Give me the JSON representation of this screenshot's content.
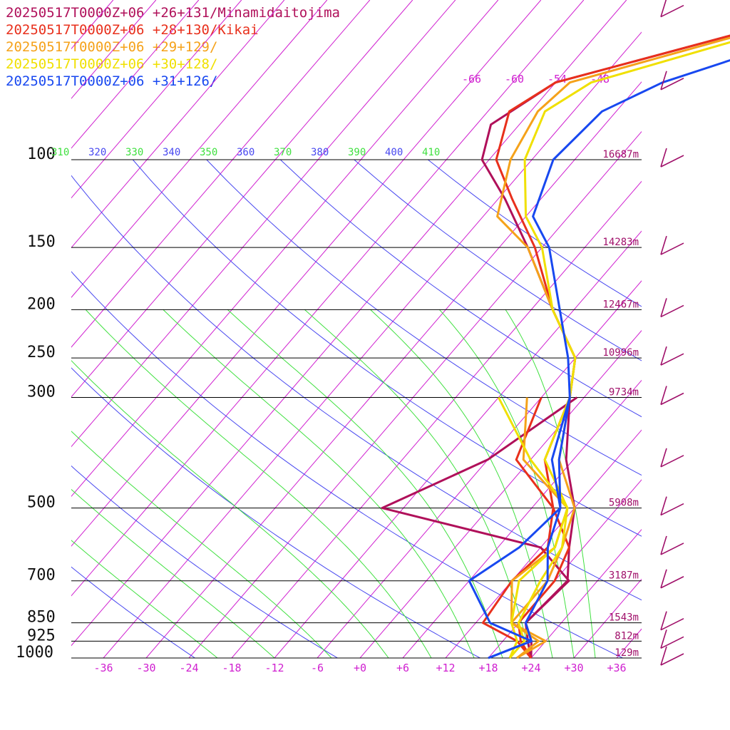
{
  "legend": [
    {
      "label": "20250517T0000Z+06 +26+131/Minamidaitojima",
      "color": "#b0105a"
    },
    {
      "label": "20250517T0000Z+06 +28+130/Kikai",
      "color": "#e8301c"
    },
    {
      "label": "20250517T0000Z+06 +29+129/",
      "color": "#f5a21a"
    },
    {
      "label": "20250517T0000Z+06 +30+128/",
      "color": "#f0e000"
    },
    {
      "label": "20250517T0000Z+06 +31+126/",
      "color": "#1848f0"
    }
  ],
  "colors": {
    "isotherm": "#d020d0",
    "dry_adiabat": "#4848f0",
    "moist_adiabat": "#40e040",
    "isobar": "#000000",
    "height_label": "#a0106a",
    "barb": "#a0106a"
  },
  "chart_data": {
    "type": "line",
    "title": "",
    "xlabel": "",
    "ylabel": "",
    "x_axis_units": "temperature C (skewed)",
    "y_axis_units": "pressure hPa (log)",
    "xlim": [
      -40,
      40
    ],
    "ylim": [
      1000,
      50
    ],
    "x_ticks": [
      "-36",
      "-30",
      "-24",
      "-18",
      "-12",
      "-6",
      "+0",
      "+6",
      "+12",
      "+18",
      "+24",
      "+30",
      "+36"
    ],
    "pressure_levels": [
      {
        "p": 100,
        "label": "100",
        "height": "16687m"
      },
      {
        "p": 150,
        "label": "150",
        "height": "14283m"
      },
      {
        "p": 200,
        "label": "200",
        "height": "12467m"
      },
      {
        "p": 250,
        "label": "250",
        "height": "10996m"
      },
      {
        "p": 300,
        "label": "300",
        "height": "9734m"
      },
      {
        "p": 500,
        "label": "500",
        "height": "5908m"
      },
      {
        "p": 700,
        "label": "700",
        "height": "3187m"
      },
      {
        "p": 850,
        "label": "850",
        "height": "1543m"
      },
      {
        "p": 925,
        "label": "925",
        "height": "812m"
      },
      {
        "p": 1000,
        "label": "1000",
        "height": "129m"
      }
    ],
    "upper_isotherm_labels": [
      "-66",
      "-60",
      "-54",
      "-48"
    ],
    "theta_labels": [
      {
        "t": "310",
        "kind": "moist"
      },
      {
        "t": "320",
        "kind": "dry"
      },
      {
        "t": "330",
        "kind": "moist"
      },
      {
        "t": "340",
        "kind": "dry"
      },
      {
        "t": "350",
        "kind": "moist"
      },
      {
        "t": "360",
        "kind": "dry"
      },
      {
        "t": "370",
        "kind": "moist"
      },
      {
        "t": "380",
        "kind": "dry"
      },
      {
        "t": "390",
        "kind": "moist"
      },
      {
        "t": "400",
        "kind": "dry"
      },
      {
        "t": "410",
        "kind": "moist"
      }
    ],
    "series": [
      {
        "name": "20250517T0000Z+06 +26+131/Minamidaitojima",
        "color": "#b0105a",
        "temperature": [
          [
            1000,
            24
          ],
          [
            925,
            22
          ],
          [
            850,
            19
          ],
          [
            700,
            20
          ],
          [
            600,
            12
          ],
          [
            500,
            -15
          ],
          [
            400,
            -6
          ],
          [
            300,
            -1
          ]
        ],
        "upper": [
          [
            1000,
            24
          ],
          [
            925,
            21.5
          ],
          [
            850,
            19
          ],
          [
            700,
            19.8
          ],
          [
            600,
            16
          ],
          [
            500,
            12
          ],
          [
            400,
            5
          ],
          [
            300,
            -2
          ],
          [
            250,
            -6
          ],
          [
            200,
            -15
          ],
          [
            150,
            -26
          ],
          [
            120,
            -35
          ],
          [
            100,
            -43
          ],
          [
            85,
            -46
          ],
          [
            70,
            -42
          ],
          [
            55,
            -21
          ],
          [
            40,
            10
          ]
        ]
      },
      {
        "name": "20250517T0000Z+06 +28+130/Kikai",
        "color": "#e8301c",
        "temperature": [
          [
            1000,
            24
          ],
          [
            925,
            20
          ],
          [
            850,
            13
          ],
          [
            700,
            12
          ],
          [
            600,
            13
          ],
          [
            500,
            9
          ],
          [
            400,
            -2
          ],
          [
            300,
            -6
          ]
        ],
        "upper": [
          [
            1000,
            24
          ],
          [
            925,
            20.5
          ],
          [
            850,
            18
          ],
          [
            700,
            18
          ],
          [
            600,
            16
          ],
          [
            500,
            9
          ],
          [
            400,
            2
          ],
          [
            300,
            -2
          ],
          [
            250,
            -6
          ],
          [
            200,
            -15
          ],
          [
            150,
            -25
          ],
          [
            120,
            -34
          ],
          [
            100,
            -41
          ],
          [
            80,
            -45
          ],
          [
            70,
            -42
          ],
          [
            55,
            -21
          ],
          [
            40,
            10
          ]
        ]
      },
      {
        "name": "20250517T0000Z+06 +29+129/",
        "color": "#f5a21a",
        "temperature": [
          [
            1000,
            22
          ],
          [
            925,
            24
          ],
          [
            850,
            17
          ],
          [
            700,
            12
          ],
          [
            600,
            14
          ],
          [
            500,
            11
          ],
          [
            400,
            -1
          ],
          [
            300,
            -8
          ]
        ],
        "upper": [
          [
            1000,
            22
          ],
          [
            925,
            23
          ],
          [
            850,
            17
          ],
          [
            700,
            17
          ],
          [
            600,
            15
          ],
          [
            500,
            12
          ],
          [
            400,
            4
          ],
          [
            300,
            -2
          ],
          [
            250,
            -6
          ],
          [
            200,
            -15
          ],
          [
            150,
            -26
          ],
          [
            130,
            -34
          ],
          [
            100,
            -39
          ],
          [
            80,
            -41
          ],
          [
            70,
            -40
          ],
          [
            55,
            -20
          ],
          [
            40,
            10
          ]
        ]
      },
      {
        "name": "20250517T0000Z+06 +30+128/",
        "color": "#f0e000",
        "temperature": [
          [
            1000,
            21
          ],
          [
            925,
            20
          ],
          [
            850,
            17
          ],
          [
            700,
            13
          ],
          [
            600,
            14
          ],
          [
            500,
            11
          ],
          [
            400,
            0
          ],
          [
            300,
            -12
          ]
        ],
        "upper": [
          [
            1000,
            21
          ],
          [
            925,
            21
          ],
          [
            850,
            18
          ],
          [
            700,
            16
          ],
          [
            600,
            15
          ],
          [
            500,
            11
          ],
          [
            400,
            2
          ],
          [
            300,
            -2
          ],
          [
            250,
            -6
          ],
          [
            200,
            -15
          ],
          [
            150,
            -24
          ],
          [
            130,
            -30
          ],
          [
            100,
            -37
          ],
          [
            80,
            -40
          ],
          [
            70,
            -37
          ],
          [
            55,
            -18
          ],
          [
            40,
            10
          ]
        ]
      },
      {
        "name": "20250517T0000Z+06 +31+126/",
        "color": "#1848f0",
        "temperature": [
          [
            1000,
            18
          ],
          [
            925,
            22
          ],
          [
            850,
            14
          ],
          [
            700,
            6
          ],
          [
            600,
            9
          ],
          [
            500,
            10
          ],
          [
            400,
            4
          ],
          [
            300,
            -2
          ]
        ],
        "upper": [
          [
            1000,
            18
          ],
          [
            925,
            22
          ],
          [
            850,
            19
          ],
          [
            700,
            17
          ],
          [
            600,
            13
          ],
          [
            500,
            10
          ],
          [
            400,
            3
          ],
          [
            300,
            -2
          ],
          [
            250,
            -7
          ],
          [
            200,
            -14
          ],
          [
            150,
            -23
          ],
          [
            130,
            -29
          ],
          [
            100,
            -33
          ],
          [
            80,
            -32
          ],
          [
            70,
            -27
          ],
          [
            55,
            -11
          ],
          [
            40,
            10
          ]
        ]
      }
    ],
    "wind_barbs_hpa": [
      1000,
      925,
      850,
      700,
      600,
      500,
      400,
      300,
      250,
      200,
      150,
      100,
      70,
      50
    ]
  }
}
